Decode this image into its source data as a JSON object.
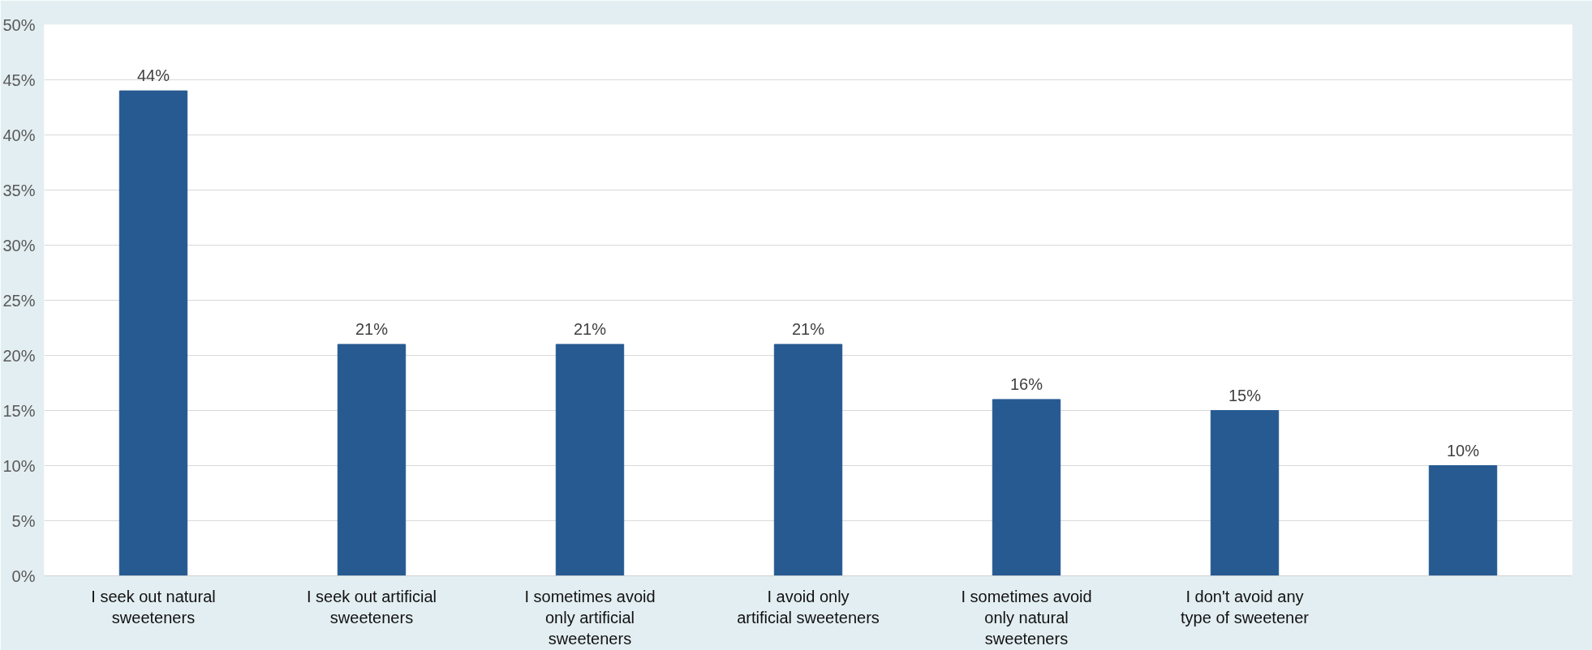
{
  "chart_data": {
    "type": "bar",
    "categories": [
      "I seek out natural sweeteners",
      "I seek out artificial sweeteners",
      "I sometimes avoid only artificial sweeteners",
      "I avoid only artificial sweeteners",
      "I sometimes avoid only natural sweeteners",
      "I don't avoid any type of sweetener",
      null
    ],
    "values": [
      44,
      21,
      21,
      21,
      16,
      15,
      10
    ],
    "value_labels": [
      "44%",
      "21%",
      "21%",
      "21%",
      "16%",
      "15%",
      "10%"
    ],
    "color": "#265a91",
    "ylim": [
      0,
      50
    ],
    "yticks": [
      {
        "value": 0,
        "label": "0%"
      },
      {
        "value": 5,
        "label": "5%"
      },
      {
        "value": 10,
        "label": "10%"
      },
      {
        "value": 15,
        "label": "15%"
      },
      {
        "value": 20,
        "label": "20%"
      },
      {
        "value": 25,
        "label": "25%"
      },
      {
        "value": 30,
        "label": "30%"
      },
      {
        "value": 35,
        "label": "35%"
      },
      {
        "value": 40,
        "label": "40%"
      },
      {
        "value": 45,
        "label": "45%"
      },
      {
        "value": 50,
        "label": "50%"
      }
    ],
    "grid": "y"
  }
}
